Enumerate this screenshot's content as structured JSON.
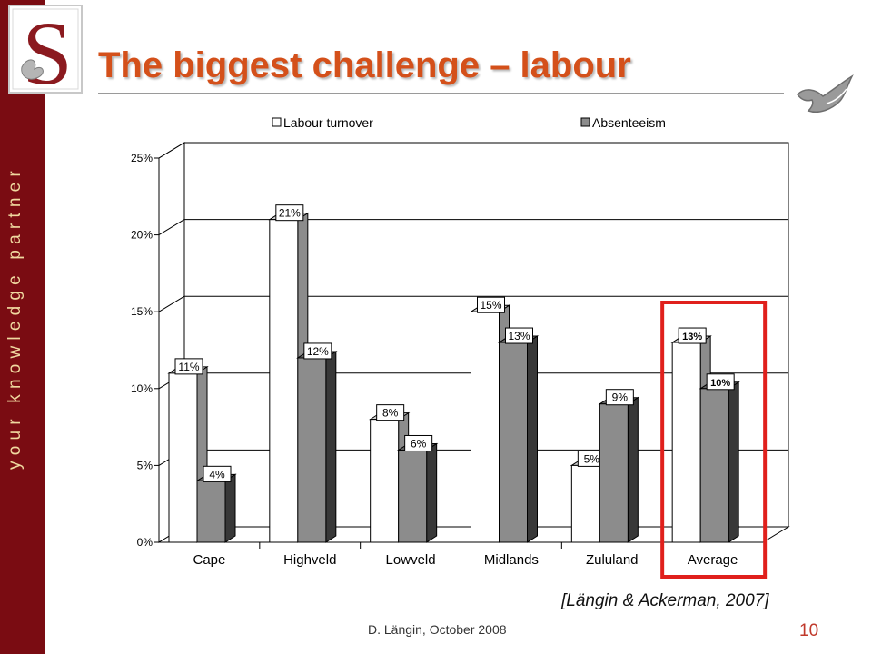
{
  "header": {
    "title": "The biggest challenge – labour",
    "logo_letter": "S"
  },
  "sidebar": {
    "tagline": "your knowledge partner"
  },
  "footer": {
    "citation": "[Längin & Ackerman, 2007]",
    "author_date": "D. Längin, October 2008",
    "page_number": "10"
  },
  "colors": {
    "sidebar": "#7a0c12",
    "title": "#d4501a",
    "highlight_box": "#e0201c",
    "absenteeism_bar": "#8c8c8c"
  },
  "icons": [
    "seal-logo-icon",
    "fish-icon"
  ],
  "chart_data": {
    "type": "bar",
    "categories": [
      "Cape",
      "Highveld",
      "Lowveld",
      "Midlands",
      "Zululand",
      "Average"
    ],
    "series": [
      {
        "name": "Labour turnover",
        "values": [
          11,
          21,
          8,
          15,
          5,
          13
        ],
        "labels": [
          "11%",
          "21%",
          "8%",
          "15%",
          "5%",
          "13%"
        ],
        "color": "#ffffff"
      },
      {
        "name": "Absenteeism",
        "values": [
          4,
          12,
          6,
          13,
          9,
          10
        ],
        "labels": [
          "4%",
          "12%",
          "6%",
          "13%",
          "9%",
          "10%"
        ],
        "color": "#8c8c8c"
      }
    ],
    "ylim": [
      0,
      25
    ],
    "yticks": [
      0,
      5,
      10,
      15,
      20,
      25
    ],
    "ytick_labels": [
      "0%",
      "5%",
      "10%",
      "15%",
      "20%",
      "25%"
    ],
    "grid": true,
    "legend": "top",
    "style": "3d",
    "highlighted_category": "Average"
  }
}
